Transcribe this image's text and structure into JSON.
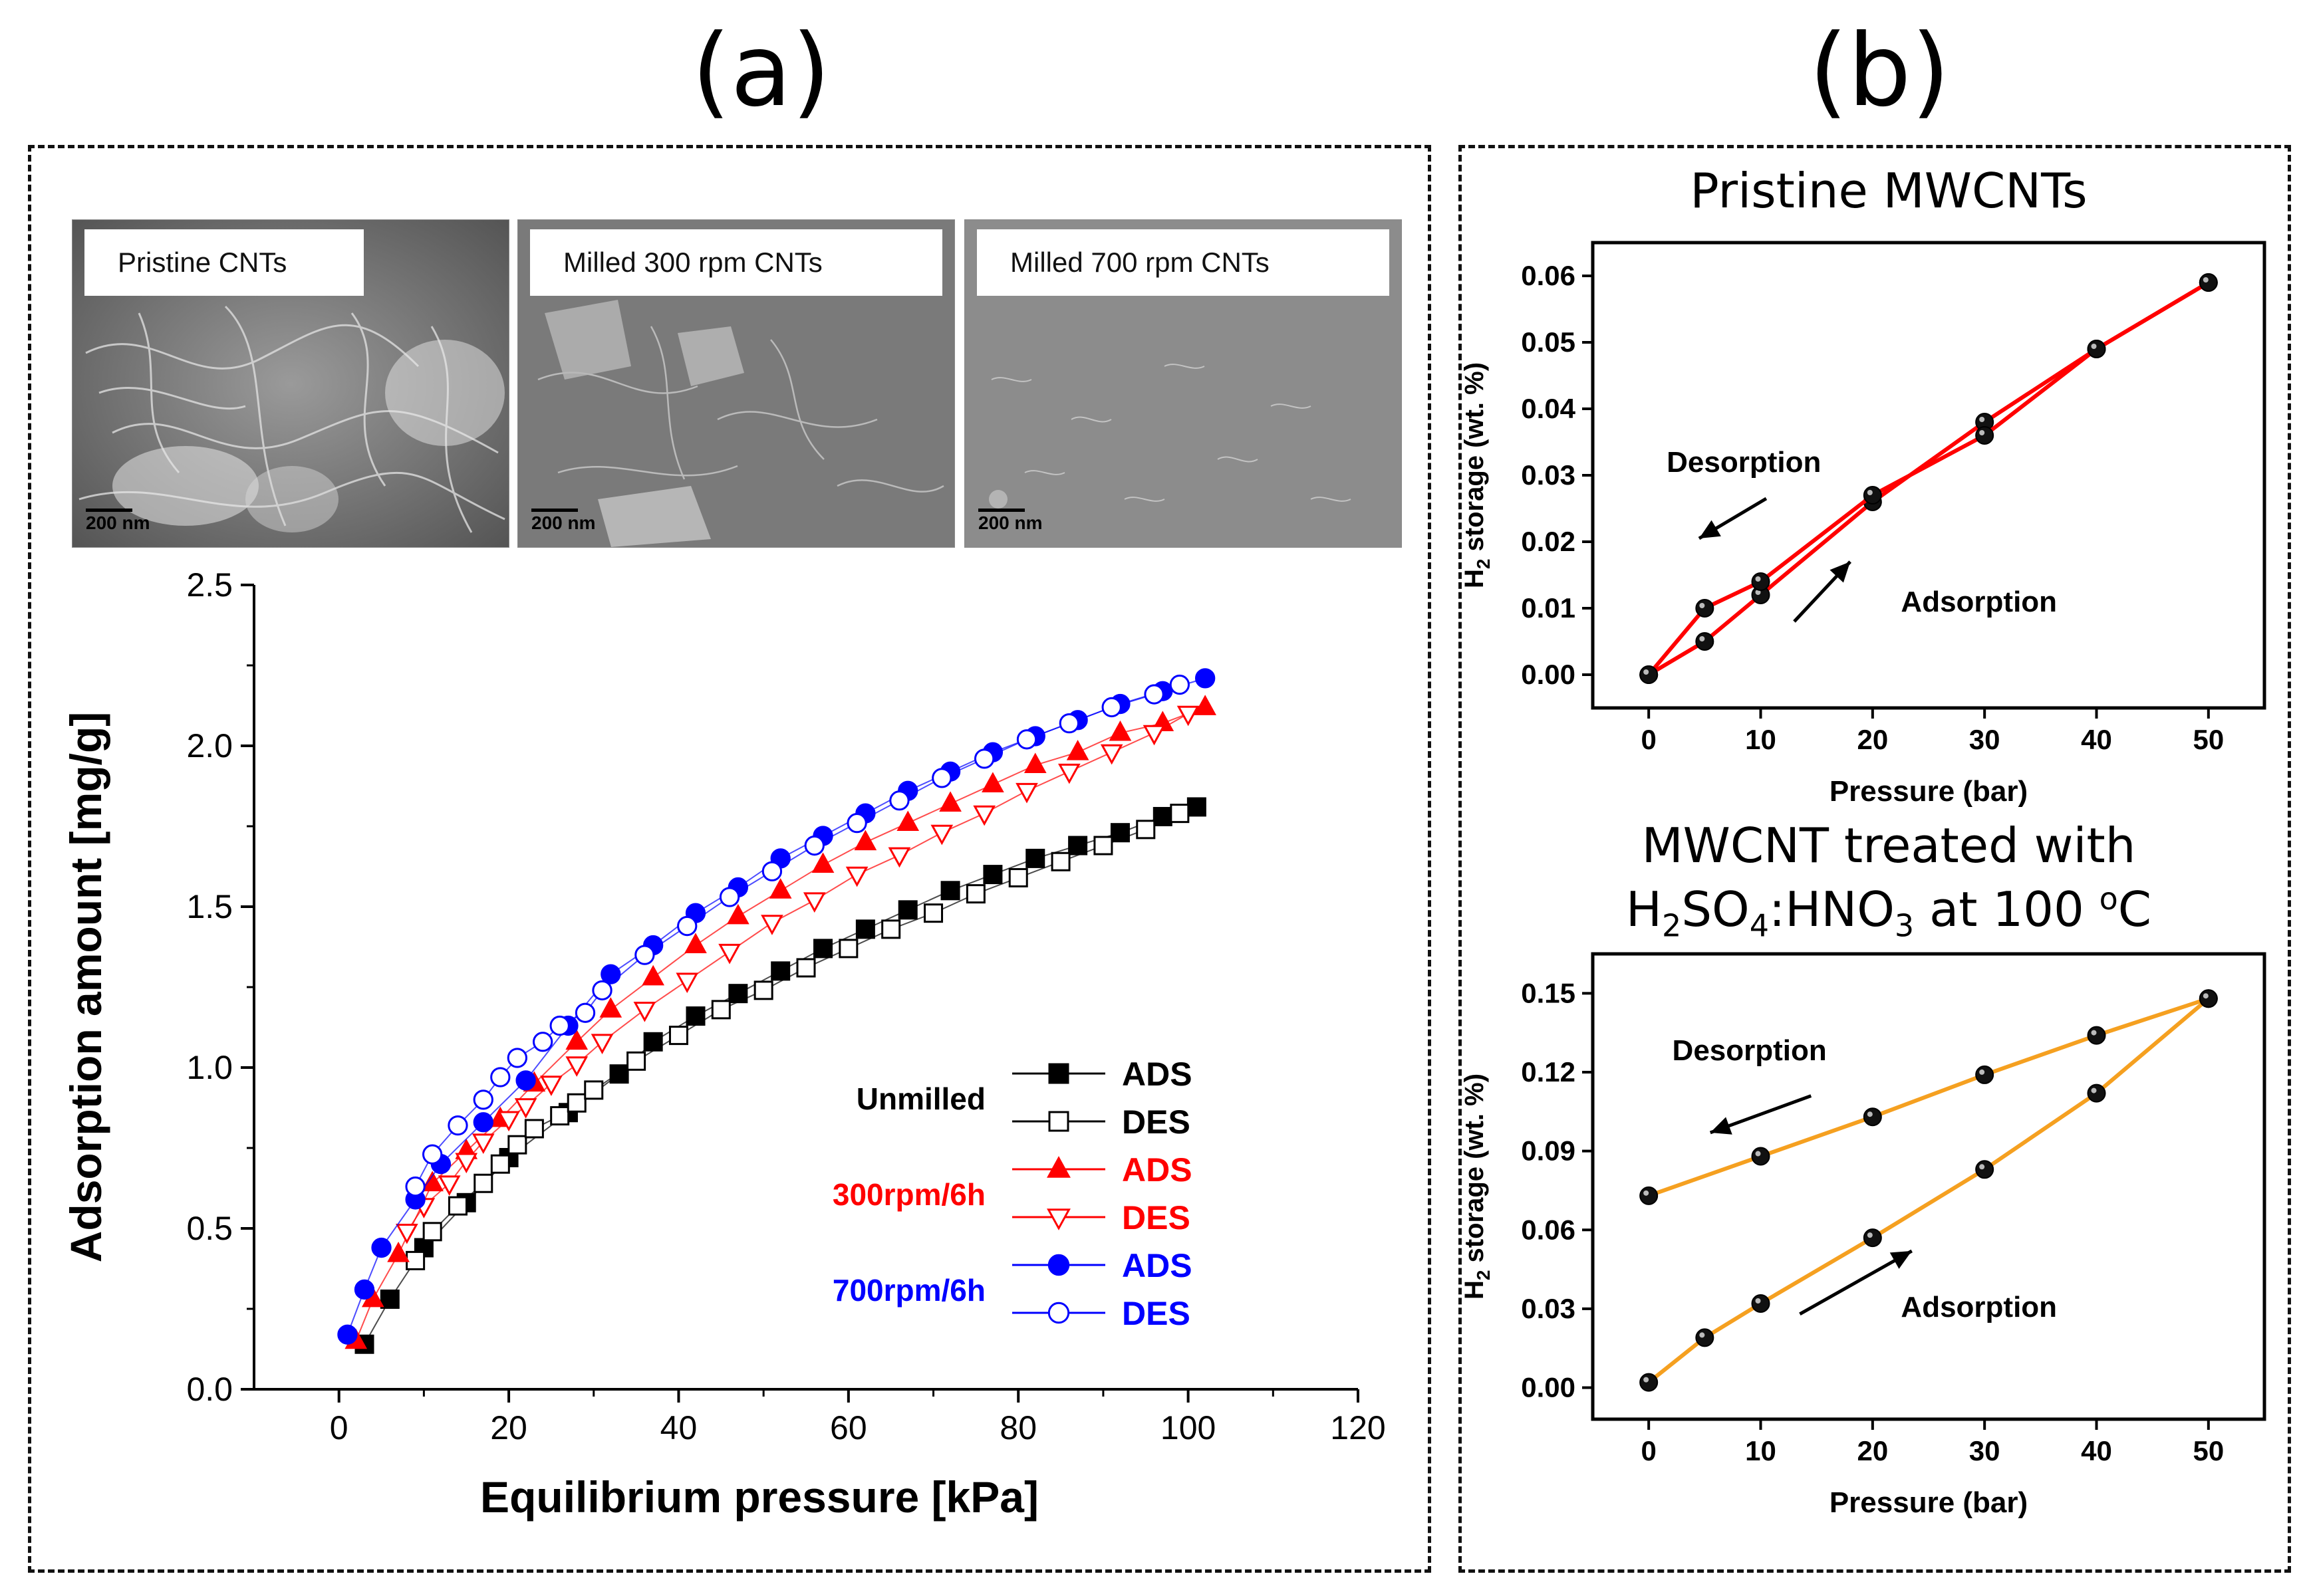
{
  "panels": {
    "a": "(a)",
    "b": "(b)"
  },
  "sem": [
    {
      "caption": "Pristine CNTs",
      "scale": "200 nm"
    },
    {
      "caption": "Milled 300 rpm CNTs",
      "scale": "200 nm"
    },
    {
      "caption": "Milled 700 rpm CNTs",
      "scale": "200 nm"
    }
  ],
  "chart_data": [
    {
      "type": "scatter",
      "xlabel": "Equilibrium pressure [kPa]",
      "ylabel": "Adsorption amount [mg/g]",
      "xlim": [
        -10,
        120
      ],
      "ylim": [
        0,
        2.5
      ],
      "xticks": [
        0,
        20,
        40,
        60,
        80,
        100,
        120
      ],
      "yticks": [
        0.0,
        0.5,
        1.0,
        1.5,
        2.0,
        2.5
      ],
      "legend_groups": [
        "Unmilled",
        "300rpm/6h",
        "700rpm/6h"
      ],
      "series": [
        {
          "name": "ADS",
          "group": "Unmilled",
          "marker": "square-filled",
          "color": "#000000",
          "x": [
            3,
            6,
            10,
            15,
            20,
            27,
            33,
            37,
            42,
            47,
            52,
            57,
            62,
            67,
            72,
            77,
            82,
            87,
            92,
            97,
            101
          ],
          "y": [
            0.14,
            0.28,
            0.44,
            0.58,
            0.72,
            0.86,
            0.98,
            1.08,
            1.16,
            1.23,
            1.3,
            1.37,
            1.43,
            1.49,
            1.55,
            1.6,
            1.65,
            1.69,
            1.73,
            1.78,
            1.81
          ]
        },
        {
          "name": "DES",
          "group": "Unmilled",
          "marker": "square-open",
          "color": "#000000",
          "x": [
            9,
            11,
            14,
            17,
            19,
            21,
            23,
            26,
            28,
            30,
            35,
            40,
            45,
            50,
            55,
            60,
            65,
            70,
            75,
            80,
            85,
            90,
            95,
            99
          ],
          "y": [
            0.4,
            0.49,
            0.57,
            0.64,
            0.7,
            0.76,
            0.81,
            0.85,
            0.89,
            0.93,
            1.02,
            1.1,
            1.18,
            1.24,
            1.31,
            1.37,
            1.43,
            1.48,
            1.54,
            1.59,
            1.64,
            1.69,
            1.74,
            1.79
          ]
        },
        {
          "name": "ADS",
          "group": "300rpm/6h",
          "marker": "triangle-filled",
          "color": "#ff0000",
          "x": [
            2,
            4,
            7,
            11,
            15,
            19,
            23,
            28,
            32,
            37,
            42,
            47,
            52,
            57,
            62,
            67,
            72,
            77,
            82,
            87,
            92,
            97,
            102
          ],
          "y": [
            0.15,
            0.28,
            0.42,
            0.64,
            0.74,
            0.84,
            0.95,
            1.08,
            1.18,
            1.28,
            1.38,
            1.47,
            1.55,
            1.63,
            1.7,
            1.76,
            1.82,
            1.88,
            1.94,
            1.98,
            2.04,
            2.07,
            2.12
          ]
        },
        {
          "name": "DES",
          "group": "300rpm/6h",
          "marker": "triangle-open",
          "color": "#ff0000",
          "x": [
            8,
            10,
            13,
            15,
            17,
            20,
            22,
            25,
            28,
            31,
            36,
            41,
            46,
            51,
            56,
            61,
            66,
            71,
            76,
            81,
            86,
            91,
            96,
            100
          ],
          "y": [
            0.49,
            0.57,
            0.64,
            0.71,
            0.77,
            0.84,
            0.88,
            0.95,
            1.01,
            1.08,
            1.18,
            1.27,
            1.36,
            1.45,
            1.52,
            1.6,
            1.66,
            1.73,
            1.79,
            1.86,
            1.92,
            1.98,
            2.04,
            2.1
          ]
        },
        {
          "name": "ADS",
          "group": "700rpm/6h",
          "marker": "circle-filled",
          "color": "#0000ff",
          "x": [
            1,
            3,
            5,
            9,
            12,
            17,
            22,
            27,
            32,
            37,
            42,
            47,
            52,
            57,
            62,
            67,
            72,
            77,
            82,
            87,
            92,
            97,
            102
          ],
          "y": [
            0.17,
            0.31,
            0.44,
            0.59,
            0.7,
            0.83,
            0.96,
            1.13,
            1.29,
            1.38,
            1.48,
            1.56,
            1.65,
            1.72,
            1.79,
            1.86,
            1.92,
            1.98,
            2.03,
            2.08,
            2.13,
            2.17,
            2.21
          ]
        },
        {
          "name": "DES",
          "group": "700rpm/6h",
          "marker": "circle-open",
          "color": "#0000ff",
          "x": [
            9,
            11,
            14,
            17,
            19,
            21,
            24,
            26,
            29,
            31,
            36,
            41,
            46,
            51,
            56,
            61,
            66,
            71,
            76,
            81,
            86,
            91,
            96,
            99
          ],
          "y": [
            0.63,
            0.73,
            0.82,
            0.9,
            0.97,
            1.03,
            1.08,
            1.13,
            1.17,
            1.24,
            1.35,
            1.44,
            1.53,
            1.61,
            1.69,
            1.76,
            1.83,
            1.9,
            1.96,
            2.02,
            2.07,
            2.12,
            2.16,
            2.19
          ]
        }
      ]
    },
    {
      "type": "line",
      "title": "Pristine MWCNTs",
      "xlabel": "Pressure (bar)",
      "ylabel_main": "H",
      "ylabel_sub": "2",
      "ylabel_rest": " storage (wt. %)",
      "xlim": [
        -5,
        55
      ],
      "ylim": [
        -0.005,
        0.065
      ],
      "xticks": [
        0,
        10,
        20,
        30,
        40,
        50
      ],
      "yticks": [
        0.0,
        0.01,
        0.02,
        0.03,
        0.04,
        0.05,
        0.06
      ],
      "ytick_decimals": 2,
      "color": "#ff0000",
      "series": [
        {
          "name": "Adsorption",
          "x": [
            0,
            5,
            10,
            20,
            30,
            40,
            50
          ],
          "y": [
            0.0,
            0.005,
            0.012,
            0.026,
            0.038,
            0.049,
            0.059
          ]
        },
        {
          "name": "Desorption",
          "x": [
            50,
            40,
            30,
            20,
            10,
            5,
            0
          ],
          "y": [
            0.059,
            0.049,
            0.036,
            0.027,
            0.014,
            0.01,
            0.0
          ]
        }
      ],
      "annotations": [
        {
          "text": "Desorption",
          "x": 8.5,
          "y": 0.0305,
          "arrow_from": [
            10.5,
            0.0265
          ],
          "arrow_to": [
            4.5,
            0.0205
          ]
        },
        {
          "text": "Adsorption",
          "x": 29.5,
          "y": 0.0095,
          "arrow_from": [
            13,
            0.008
          ],
          "arrow_to": [
            18,
            0.017
          ]
        }
      ]
    },
    {
      "type": "line",
      "title_line1": "MWCNT treated with",
      "title_line2_parts": [
        "H",
        "2",
        "SO",
        "4",
        ":HNO",
        "3",
        " at 100 ",
        "o",
        "C"
      ],
      "xlabel": "Pressure (bar)",
      "ylabel_main": "H",
      "ylabel_sub": "2",
      "ylabel_rest": " storage (wt. %)",
      "xlim": [
        -5,
        55
      ],
      "ylim": [
        -0.012,
        0.165
      ],
      "xticks": [
        0,
        10,
        20,
        30,
        40,
        50
      ],
      "yticks": [
        0.0,
        0.03,
        0.06,
        0.09,
        0.12,
        0.15
      ],
      "ytick_decimals": 2,
      "color": "#f5a020",
      "series": [
        {
          "name": "Adsorption",
          "x": [
            0,
            5,
            10,
            20,
            30,
            40,
            50
          ],
          "y": [
            0.002,
            0.019,
            0.032,
            0.057,
            0.083,
            0.112,
            0.148
          ]
        },
        {
          "name": "Desorption",
          "x": [
            50,
            40,
            30,
            20,
            10,
            0
          ],
          "y": [
            0.148,
            0.134,
            0.119,
            0.103,
            0.088,
            0.073
          ]
        }
      ],
      "annotations": [
        {
          "text": "Desorption",
          "x": 9,
          "y": 0.1245,
          "arrow_from": [
            14.5,
            0.111
          ],
          "arrow_to": [
            5.5,
            0.097
          ]
        },
        {
          "text": "Adsorption",
          "x": 29.5,
          "y": 0.027,
          "arrow_from": [
            13.5,
            0.028
          ],
          "arrow_to": [
            23.5,
            0.052
          ]
        }
      ]
    }
  ]
}
